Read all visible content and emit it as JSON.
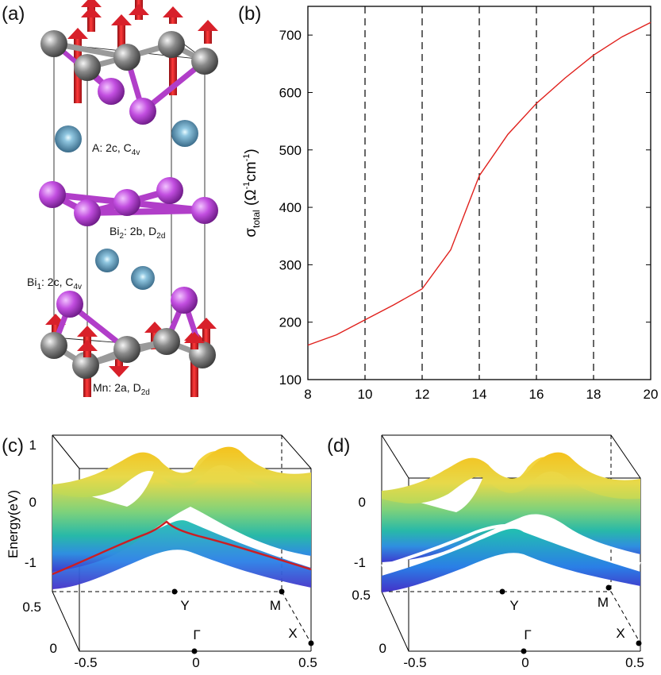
{
  "panels": {
    "a": {
      "label": "(a)",
      "site_labels": {
        "A": "A: 2c, C",
        "A_sub": "4v",
        "Bi2": "Bi",
        "Bi2_num": "2",
        "Bi2_rest": ": 2b, D",
        "Bi2_sub": "2d",
        "Bi1": "Bi",
        "Bi1_num": "1",
        "Bi1_rest": ": 2c, C",
        "Bi1_sub": "4v",
        "Mn": "Mn: 2a, D",
        "Mn_sub": "2d"
      },
      "colors": {
        "Mn": "#6f6f6f",
        "Bi": "#b13ec9",
        "A": "#4f86a8",
        "moment": "#d8202a"
      }
    },
    "b": {
      "label": "(b)"
    },
    "c": {
      "label": "(c)"
    },
    "d": {
      "label": "(d)"
    }
  },
  "chart_data": [
    {
      "type": "line",
      "panel": "b",
      "x": [
        8,
        9,
        10,
        11,
        12,
        13,
        14,
        15,
        16,
        17,
        18,
        19,
        20
      ],
      "series": [
        {
          "color": "#e0201c",
          "values": [
            160,
            178,
            204,
            230,
            258,
            326,
            455,
            527,
            581,
            625,
            665,
            697,
            722
          ]
        }
      ],
      "xlim": [
        8,
        20
      ],
      "ylim": [
        100,
        750
      ],
      "xticks": [
        "8",
        "10",
        "12",
        "14",
        "16",
        "18",
        "20"
      ],
      "yticks": [
        "100",
        "200",
        "300",
        "400",
        "500",
        "600",
        "700"
      ],
      "ylabel": "σ",
      "ylabel_sub": "total",
      "ylabel_unit_open": " (Ω",
      "ylabel_sup1": "-1",
      "ylabel_mid": "cm",
      "ylabel_sup2": "-1",
      "ylabel_close": ")",
      "vlines": [
        10,
        12,
        14,
        16,
        18
      ]
    },
    {
      "type": "surface",
      "panel": "c",
      "zlabel": "Energy(eV)",
      "zticks": [
        "1",
        "0",
        "-1"
      ],
      "x_ticks": [
        "-0.5",
        "0",
        "0.5"
      ],
      "y_ticks": [
        "0",
        "0.5"
      ],
      "k_points": [
        "Γ",
        "Y",
        "M",
        "X"
      ],
      "nodal_line_color": "#cc1d22"
    },
    {
      "type": "surface",
      "panel": "d",
      "zticks": [
        "0",
        "-1"
      ],
      "x_ticks": [
        "-0.5",
        "0",
        "0.5"
      ],
      "y_ticks": [
        "0",
        "0.5"
      ],
      "k_points": [
        "Γ",
        "Y",
        "M",
        "X"
      ],
      "gap_line_color": "#ffffff"
    }
  ]
}
